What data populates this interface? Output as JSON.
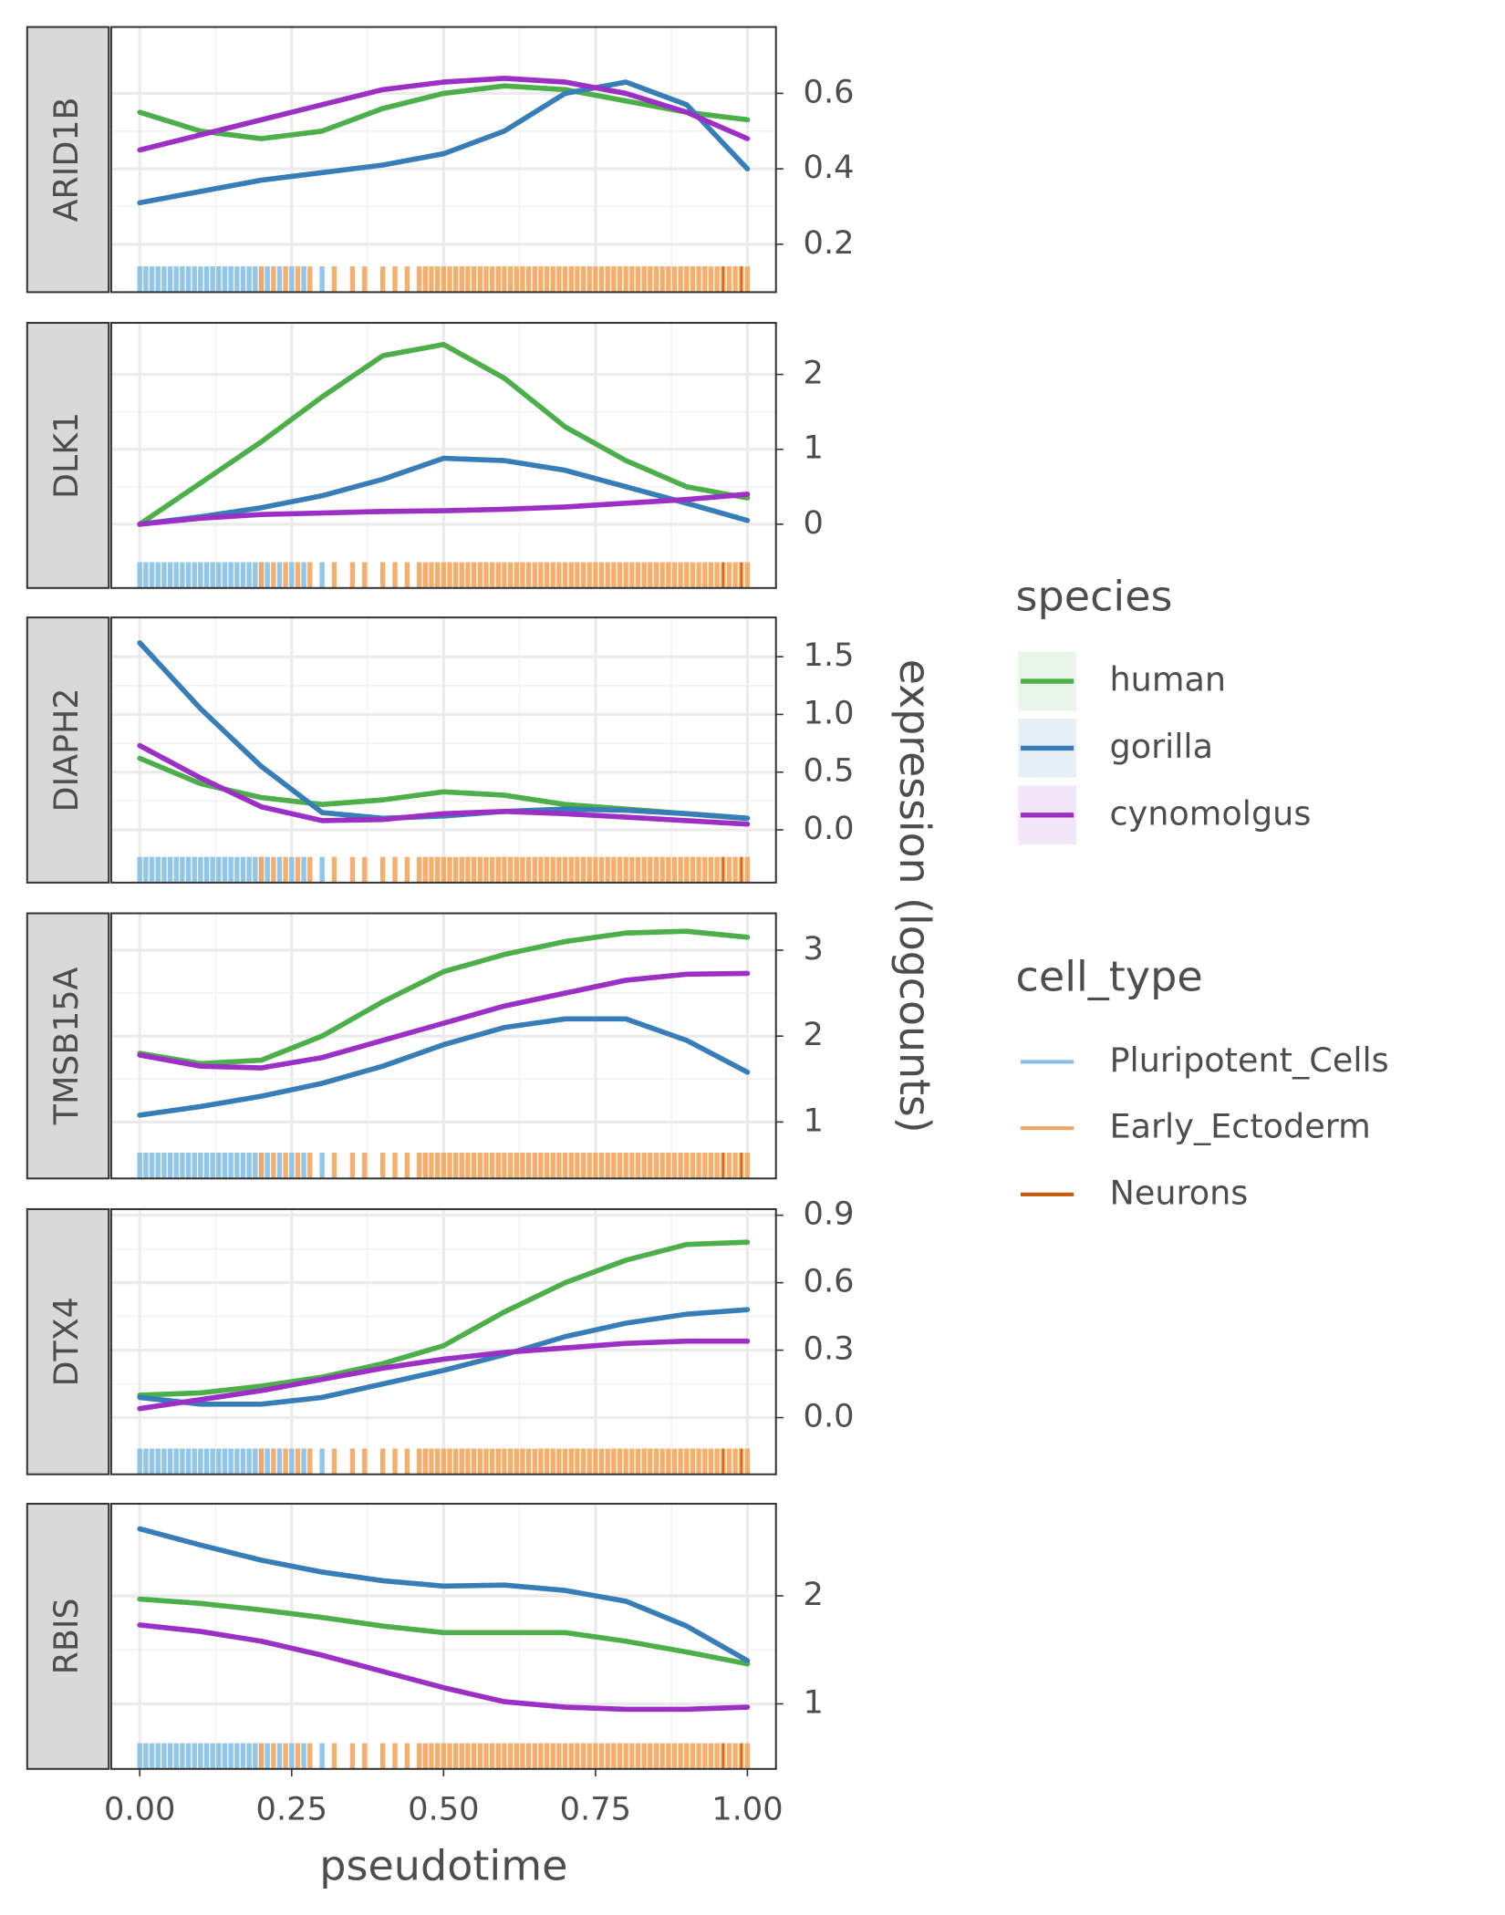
{
  "chart_data": [
    {
      "type": "line",
      "title": "ARID1B",
      "legend_title": "species",
      "x": [
        0,
        0.1,
        0.2,
        0.3,
        0.4,
        0.5,
        0.6,
        0.7,
        0.8,
        0.9,
        1.0
      ],
      "series": [
        {
          "name": "human",
          "color": "#4daf4a",
          "values": [
            0.55,
            0.5,
            0.48,
            0.5,
            0.56,
            0.6,
            0.62,
            0.61,
            0.58,
            0.55,
            0.53
          ]
        },
        {
          "name": "gorilla",
          "color": "#377eb8",
          "values": [
            0.31,
            0.34,
            0.37,
            0.39,
            0.41,
            0.44,
            0.5,
            0.6,
            0.63,
            0.57,
            0.4
          ]
        },
        {
          "name": "cynomolgus",
          "color": "#9b2fc6",
          "values": [
            0.45,
            0.49,
            0.53,
            0.57,
            0.61,
            0.63,
            0.64,
            0.63,
            0.6,
            0.55,
            0.48
          ]
        }
      ],
      "xlim": [
        -0.047,
        1.047
      ],
      "xticks": [
        {
          "value": 0,
          "label": "0.00"
        },
        {
          "value": 0.25,
          "label": "0.25"
        },
        {
          "value": 0.5,
          "label": "0.50"
        },
        {
          "value": 0.75,
          "label": "0.75"
        },
        {
          "value": 1,
          "label": "1.00"
        }
      ],
      "ylim": [
        0.073,
        0.776
      ],
      "yticks": [
        0.2,
        0.4,
        0.6
      ],
      "grid": true,
      "rug": {
        "title": "cell_type",
        "groups": [
          {
            "name": "Pluripotent_Cells",
            "color": "#85bfe8",
            "x": [
              0,
              0.01,
              0.02,
              0.03,
              0.04,
              0.05,
              0.06,
              0.07,
              0.08,
              0.09,
              0.1,
              0.11,
              0.12,
              0.13,
              0.14,
              0.15,
              0.16,
              0.17,
              0.18,
              0.19,
              0.2,
              0.21,
              0.23,
              0.25,
              0.27,
              0.3
            ]
          },
          {
            "name": "Early_Ectoderm",
            "color": "#f5a55c",
            "x": [
              0.2,
              0.22,
              0.24,
              0.26,
              0.28,
              0.32,
              0.35,
              0.37,
              0.4,
              0.42,
              0.44,
              0.46,
              0.47,
              0.48,
              0.49,
              0.5,
              0.51,
              0.52,
              0.53,
              0.54,
              0.55,
              0.56,
              0.57,
              0.58,
              0.59,
              0.6,
              0.61,
              0.62,
              0.63,
              0.64,
              0.65,
              0.66,
              0.67,
              0.68,
              0.69,
              0.7,
              0.71,
              0.72,
              0.73,
              0.74,
              0.75,
              0.76,
              0.77,
              0.78,
              0.79,
              0.8,
              0.81,
              0.82,
              0.83,
              0.84,
              0.85,
              0.86,
              0.87,
              0.88,
              0.89,
              0.9,
              0.91,
              0.92,
              0.93,
              0.94,
              0.95,
              0.96,
              0.97,
              0.98,
              0.99,
              1.0
            ]
          },
          {
            "name": "Neurons",
            "color": "#c85a0a",
            "x": [
              0.96,
              0.99
            ]
          }
        ]
      }
    },
    {
      "type": "line",
      "title": "DLK1",
      "x": [
        0,
        0.1,
        0.2,
        0.3,
        0.4,
        0.5,
        0.6,
        0.7,
        0.8,
        0.9,
        1.0
      ],
      "series": [
        {
          "name": "human",
          "color": "#4daf4a",
          "values": [
            0,
            0.55,
            1.1,
            1.7,
            2.25,
            2.4,
            1.95,
            1.3,
            0.85,
            0.5,
            0.35
          ]
        },
        {
          "name": "gorilla",
          "color": "#377eb8",
          "values": [
            0,
            0.1,
            0.22,
            0.38,
            0.6,
            0.88,
            0.85,
            0.72,
            0.5,
            0.28,
            0.05
          ]
        },
        {
          "name": "cynomolgus",
          "color": "#9b2fc6",
          "values": [
            0,
            0.08,
            0.13,
            0.15,
            0.17,
            0.18,
            0.2,
            0.23,
            0.28,
            0.33,
            0.4
          ]
        }
      ],
      "xlim": [
        -0.047,
        1.047
      ],
      "xticks": [
        {
          "value": 0,
          "label": "0.00"
        },
        {
          "value": 0.25,
          "label": "0.25"
        },
        {
          "value": 0.5,
          "label": "0.50"
        },
        {
          "value": 0.75,
          "label": "0.75"
        },
        {
          "value": 1,
          "label": "1.00"
        }
      ],
      "ylim": [
        -0.852,
        2.689
      ],
      "yticks": [
        0,
        1,
        2
      ],
      "grid": true
    },
    {
      "type": "line",
      "title": "DIAPH2",
      "ylabel": "expression (logcounts)",
      "x": [
        0,
        0.1,
        0.2,
        0.3,
        0.4,
        0.5,
        0.6,
        0.7,
        0.8,
        0.9,
        1.0
      ],
      "series": [
        {
          "name": "human",
          "color": "#4daf4a",
          "values": [
            0.62,
            0.4,
            0.28,
            0.22,
            0.26,
            0.33,
            0.3,
            0.22,
            0.18,
            0.14,
            0.1
          ]
        },
        {
          "name": "gorilla",
          "color": "#377eb8",
          "values": [
            1.62,
            1.05,
            0.55,
            0.15,
            0.1,
            0.12,
            0.16,
            0.18,
            0.17,
            0.14,
            0.1
          ]
        },
        {
          "name": "cynomolgus",
          "color": "#9b2fc6",
          "values": [
            0.73,
            0.45,
            0.2,
            0.08,
            0.09,
            0.14,
            0.16,
            0.14,
            0.11,
            0.08,
            0.05
          ]
        }
      ],
      "xlim": [
        -0.047,
        1.047
      ],
      "xticks": [
        {
          "value": 0,
          "label": "0.00"
        },
        {
          "value": 0.25,
          "label": "0.25"
        },
        {
          "value": 0.5,
          "label": "0.50"
        },
        {
          "value": 0.75,
          "label": "0.75"
        },
        {
          "value": 1,
          "label": "1.00"
        }
      ],
      "ylim": [
        -0.457,
        1.84
      ],
      "yticks": [
        {
          "value": 0,
          "label": "0.0"
        },
        0.5,
        {
          "value": 1,
          "label": "1.0"
        },
        1.5
      ],
      "grid": true
    },
    {
      "type": "line",
      "title": "TMSB15A",
      "x": [
        0,
        0.1,
        0.2,
        0.3,
        0.4,
        0.5,
        0.6,
        0.7,
        0.8,
        0.9,
        1.0
      ],
      "series": [
        {
          "name": "human",
          "color": "#4daf4a",
          "values": [
            1.8,
            1.68,
            1.72,
            2.0,
            2.4,
            2.75,
            2.95,
            3.1,
            3.2,
            3.22,
            3.15
          ]
        },
        {
          "name": "gorilla",
          "color": "#377eb8",
          "values": [
            1.08,
            1.18,
            1.3,
            1.45,
            1.65,
            1.9,
            2.1,
            2.2,
            2.2,
            1.95,
            1.58
          ]
        },
        {
          "name": "cynomolgus",
          "color": "#9b2fc6",
          "values": [
            1.78,
            1.65,
            1.63,
            1.75,
            1.95,
            2.15,
            2.35,
            2.5,
            2.65,
            2.72,
            2.73
          ]
        }
      ],
      "xlim": [
        -0.047,
        1.047
      ],
      "xticks": [
        {
          "value": 0,
          "label": "0.00"
        },
        {
          "value": 0.25,
          "label": "0.25"
        },
        {
          "value": 0.5,
          "label": "0.50"
        },
        {
          "value": 0.75,
          "label": "0.75"
        },
        {
          "value": 1,
          "label": "1.00"
        }
      ],
      "ylim": [
        0.343,
        3.429
      ],
      "yticks": [
        1,
        2,
        3
      ],
      "grid": true
    },
    {
      "type": "line",
      "title": "DTX4",
      "x": [
        0,
        0.1,
        0.2,
        0.3,
        0.4,
        0.5,
        0.6,
        0.7,
        0.8,
        0.9,
        1.0
      ],
      "series": [
        {
          "name": "human",
          "color": "#4daf4a",
          "values": [
            0.1,
            0.11,
            0.14,
            0.18,
            0.24,
            0.32,
            0.47,
            0.6,
            0.7,
            0.77,
            0.78
          ]
        },
        {
          "name": "gorilla",
          "color": "#377eb8",
          "values": [
            0.09,
            0.06,
            0.06,
            0.09,
            0.15,
            0.21,
            0.28,
            0.36,
            0.42,
            0.46,
            0.48
          ]
        },
        {
          "name": "cynomolgus",
          "color": "#9b2fc6",
          "values": [
            0.04,
            0.08,
            0.12,
            0.17,
            0.22,
            0.26,
            0.29,
            0.31,
            0.33,
            0.34,
            0.34
          ]
        }
      ],
      "xlim": [
        -0.047,
        1.047
      ],
      "xticks": [
        {
          "value": 0,
          "label": "0.00"
        },
        {
          "value": 0.25,
          "label": "0.25"
        },
        {
          "value": 0.5,
          "label": "0.50"
        },
        {
          "value": 0.75,
          "label": "0.75"
        },
        {
          "value": 1,
          "label": "1.00"
        }
      ],
      "ylim": [
        -0.252,
        0.927
      ],
      "yticks": [
        {
          "value": 0,
          "label": "0.0"
        },
        0.3,
        0.6,
        0.9
      ],
      "grid": true
    },
    {
      "type": "line",
      "title": "RBIS",
      "xlabel": "pseudotime",
      "x": [
        0,
        0.1,
        0.2,
        0.3,
        0.4,
        0.5,
        0.6,
        0.7,
        0.8,
        0.9,
        1.0
      ],
      "series": [
        {
          "name": "human",
          "color": "#4daf4a",
          "values": [
            1.97,
            1.93,
            1.87,
            1.8,
            1.72,
            1.66,
            1.66,
            1.66,
            1.58,
            1.48,
            1.37
          ]
        },
        {
          "name": "gorilla",
          "color": "#377eb8",
          "values": [
            2.62,
            2.47,
            2.33,
            2.22,
            2.14,
            2.09,
            2.1,
            2.05,
            1.95,
            1.72,
            1.4
          ]
        },
        {
          "name": "cynomolgus",
          "color": "#9b2fc6",
          "values": [
            1.73,
            1.67,
            1.58,
            1.45,
            1.3,
            1.15,
            1.02,
            0.97,
            0.95,
            0.95,
            0.97
          ]
        }
      ],
      "xlim": [
        -0.047,
        1.047
      ],
      "xticks": [
        {
          "value": 0,
          "label": "0.00"
        },
        {
          "value": 0.25,
          "label": "0.25"
        },
        {
          "value": 0.5,
          "label": "0.50"
        },
        {
          "value": 0.75,
          "label": "0.75"
        },
        {
          "value": 1,
          "label": "1.00"
        }
      ],
      "ylim": [
        0.398,
        2.852
      ],
      "yticks": [
        1,
        2
      ],
      "grid": true
    }
  ]
}
